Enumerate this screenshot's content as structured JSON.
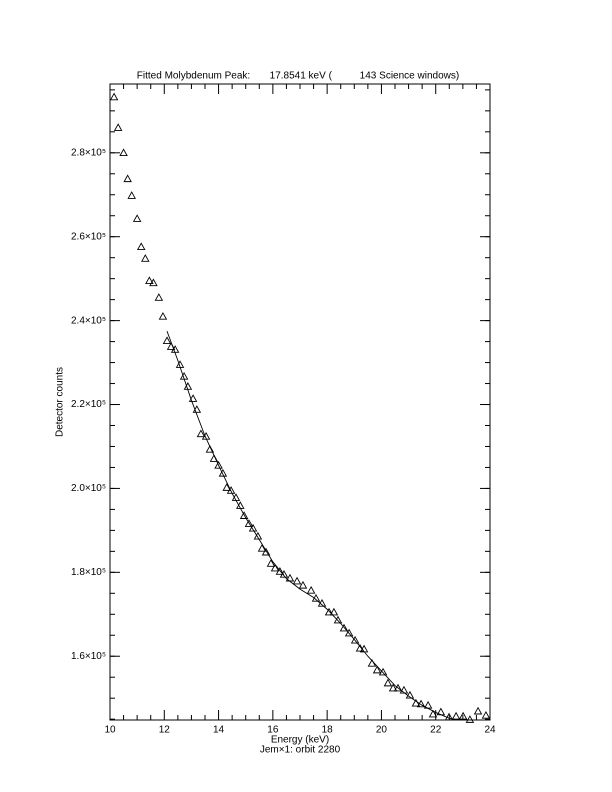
{
  "chart_data": {
    "type": "scatter",
    "title": "Fitted Molybdenum Peak:       17.8541 keV (          143 Science windows)",
    "x_label": "Energy (keV)",
    "y_label": "Detector counts",
    "subtitle": "Jem×1: orbit 2280",
    "marker": "triangle",
    "color": "#000000",
    "xlim": [
      10,
      24
    ],
    "xticks": [
      10,
      12,
      14,
      16,
      18,
      20,
      22,
      24
    ],
    "ylim": [
      144800,
      296400
    ],
    "yticks": [
      {
        "value": 160000,
        "label": "1.6×10⁵"
      },
      {
        "value": 180000,
        "label": "1.8×10⁵"
      },
      {
        "value": 200000,
        "label": "2.0×10⁵"
      },
      {
        "value": 220000,
        "label": "2.2×10⁵"
      },
      {
        "value": 240000,
        "label": "2.4×10⁵"
      },
      {
        "value": 260000,
        "label": "2.6×10⁵"
      },
      {
        "value": 280000,
        "label": "2.8×10⁵"
      }
    ],
    "x": [
      10.15,
      10.3,
      10.5,
      10.65,
      10.8,
      11.0,
      11.15,
      11.3,
      11.45,
      11.6,
      11.8,
      11.95,
      12.1,
      12.25,
      12.4,
      12.58,
      12.73,
      12.87,
      13.06,
      13.2,
      13.35,
      13.54,
      13.68,
      13.83,
      14.0,
      14.16,
      14.3,
      14.46,
      14.64,
      14.8,
      14.94,
      15.12,
      15.27,
      15.45,
      15.6,
      15.75,
      15.93,
      16.08,
      16.26,
      16.41,
      16.63,
      16.89,
      17.11,
      17.41,
      17.59,
      17.81,
      18.07,
      18.25,
      18.4,
      18.62,
      18.81,
      19.03,
      19.21,
      19.36,
      19.65,
      19.84,
      20.06,
      20.24,
      20.43,
      20.61,
      20.83,
      21.05,
      21.27,
      21.46,
      21.72,
      21.9,
      22.19,
      22.49,
      22.75,
      23.01,
      23.26,
      23.56,
      23.85
    ],
    "values": [
      293300,
      286000,
      280000,
      273800,
      269800,
      264300,
      257600,
      254800,
      249500,
      249000,
      245500,
      241000,
      235200,
      233800,
      233100,
      229500,
      226700,
      224300,
      221400,
      218800,
      213000,
      212400,
      209300,
      207100,
      205500,
      203600,
      200200,
      199500,
      197800,
      195900,
      193500,
      191600,
      190500,
      188600,
      185700,
      184800,
      182100,
      181000,
      180200,
      179500,
      178600,
      177900,
      176900,
      175700,
      173800,
      172600,
      170500,
      170500,
      168600,
      166700,
      165500,
      163800,
      161900,
      161700,
      158300,
      156700,
      156200,
      153600,
      152400,
      152400,
      151900,
      150700,
      148800,
      148600,
      148300,
      146200,
      146700,
      145500,
      145700,
      145700,
      144900,
      146900,
      145900
    ],
    "fit": {
      "x": [
        12.1,
        12.5,
        13.0,
        13.5,
        14.0,
        14.5,
        15.0,
        15.5,
        16.0,
        16.5,
        17.0,
        17.5,
        18.0,
        18.5,
        19.0,
        19.5,
        20.0,
        20.5,
        21.0,
        21.5,
        22.0,
        22.5,
        22.8
      ],
      "values": [
        237500,
        230500,
        221000,
        212500,
        205500,
        198800,
        193000,
        187800,
        182500,
        178500,
        176000,
        174000,
        171200,
        167800,
        164000,
        160000,
        156500,
        153000,
        150500,
        148300,
        146600,
        145200,
        144800
      ]
    }
  }
}
